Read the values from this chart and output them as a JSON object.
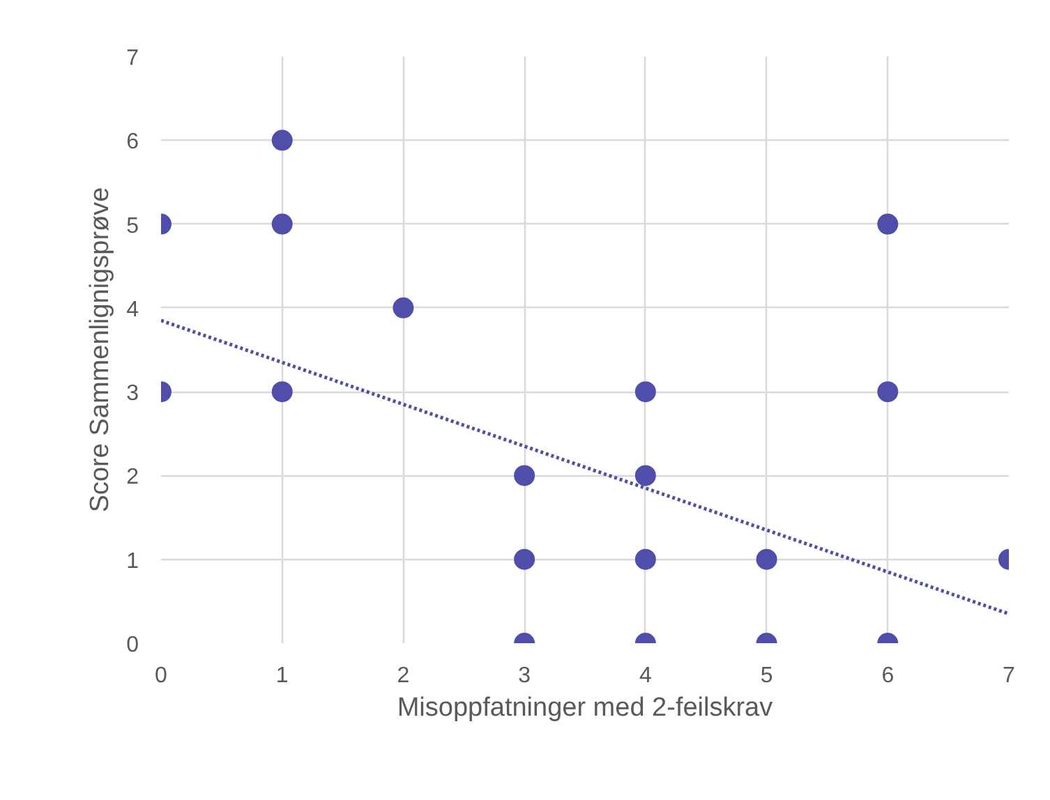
{
  "chart_data": {
    "type": "scatter",
    "xlabel": "Misoppfatninger med 2-feilskrav",
    "ylabel": "Score Sammenlignigsprøve",
    "xlim": [
      0,
      7
    ],
    "ylim": [
      0,
      7
    ],
    "xticks": [
      0,
      1,
      2,
      3,
      4,
      5,
      6,
      7
    ],
    "yticks": [
      0,
      1,
      2,
      3,
      4,
      5,
      6,
      7
    ],
    "grid": true,
    "marker": "circle",
    "series": [
      {
        "color": "#4f4fab",
        "x": [
          0,
          0,
          1,
          1,
          1,
          2,
          3,
          3,
          3,
          4,
          4,
          4,
          4,
          5,
          5,
          6,
          6,
          6,
          7
        ],
        "values": [
          5,
          3,
          6,
          5,
          3,
          4,
          2,
          1,
          0,
          3,
          2,
          1,
          0,
          1,
          0,
          5,
          3,
          0,
          1
        ]
      },
      {
        "type": "line",
        "color": "#4f4fab",
        "line_style": "dotted",
        "marker": "none",
        "x": [
          0,
          7
        ],
        "values": [
          3.85,
          0.35
        ]
      }
    ]
  }
}
